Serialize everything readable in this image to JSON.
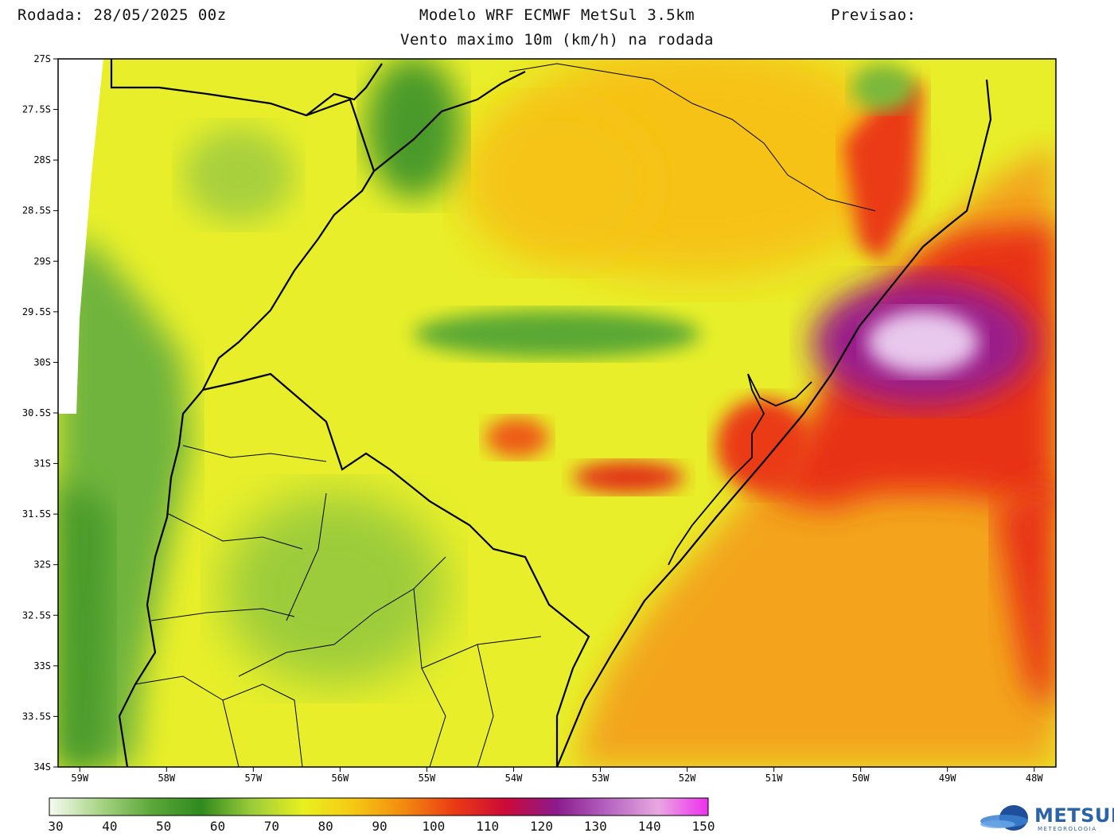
{
  "header": {
    "run": "Rodada: 28/05/2025 00z",
    "model": "Modelo WRF ECMWF MetSul 3.5km",
    "forecast": "Previsao:",
    "subtitle": "Vento maximo 10m (km/h) na rodada"
  },
  "map": {
    "lat_ticks": [
      "27S",
      "27.5S",
      "28S",
      "28.5S",
      "29S",
      "29.5S",
      "30S",
      "30.5S",
      "31S",
      "31.5S",
      "32S",
      "32.5S",
      "33S",
      "33.5S",
      "34S"
    ],
    "lon_ticks": [
      "59W",
      "58W",
      "57W",
      "56W",
      "55W",
      "54W",
      "53W",
      "52W",
      "51W",
      "50W",
      "49W",
      "48W"
    ],
    "lat_range": [
      -34,
      -27
    ],
    "lon_range": [
      -59.25,
      -47.75
    ]
  },
  "colorbar": {
    "labels": [
      "30",
      "40",
      "50",
      "60",
      "70",
      "80",
      "90",
      "100",
      "110",
      "120",
      "130",
      "140",
      "150"
    ],
    "min": 30,
    "max": 150,
    "colors": [
      "#f6fbf2",
      "#a9d486",
      "#5da83a",
      "#2f8a1e",
      "#9ccc3a",
      "#e8f020",
      "#f6c814",
      "#f28a10",
      "#ea3a14",
      "#cc0a38",
      "#8a1a8c",
      "#b462c0",
      "#e8a8e0",
      "#ee30ee"
    ]
  },
  "logo": {
    "name": "METSUL",
    "tagline": "METEOROLOGIA"
  }
}
